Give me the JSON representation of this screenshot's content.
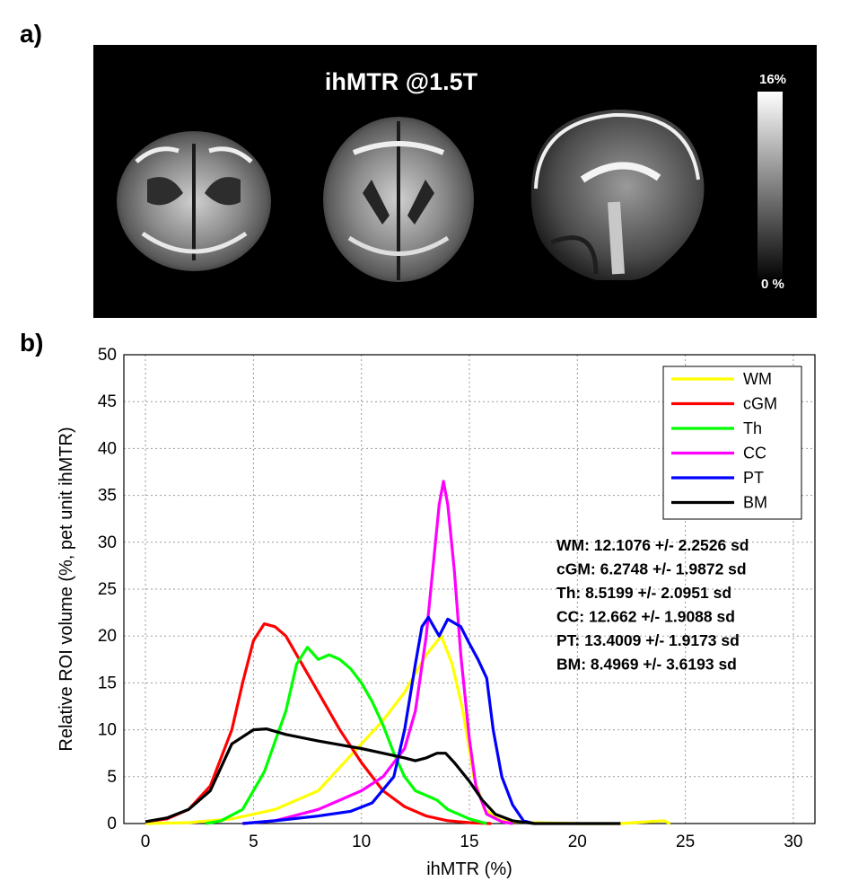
{
  "panel_a_label": "a)",
  "panel_b_label": "b)",
  "mri": {
    "title": "ihMTR @1.5T",
    "colorbar_max": "16%",
    "colorbar_min": "0 %"
  },
  "chart_data": {
    "type": "line",
    "xlabel": "ihMTR (%)",
    "ylabel": "Relative ROI volume (%, pet unit ihMTR)",
    "xlim": [
      -1,
      31
    ],
    "ylim": [
      0,
      50
    ],
    "xticks": [
      0,
      5,
      10,
      15,
      20,
      25,
      30
    ],
    "yticks": [
      0,
      5,
      10,
      15,
      20,
      25,
      30,
      35,
      40,
      45,
      50
    ],
    "grid": true,
    "legend_position": "top-right",
    "series": [
      {
        "name": "WM",
        "color": "#ffff00",
        "points": [
          [
            0,
            0
          ],
          [
            2,
            0.1
          ],
          [
            4,
            0.5
          ],
          [
            6,
            1.5
          ],
          [
            8,
            3.5
          ],
          [
            9,
            6
          ],
          [
            10,
            8.5
          ],
          [
            11,
            11
          ],
          [
            12,
            14
          ],
          [
            13,
            18
          ],
          [
            13.7,
            20
          ],
          [
            14.2,
            17
          ],
          [
            14.7,
            12
          ],
          [
            15.2,
            5
          ],
          [
            15.7,
            1.5
          ],
          [
            16.5,
            0.3
          ],
          [
            18,
            0.1
          ],
          [
            20,
            0
          ],
          [
            22,
            0
          ],
          [
            24,
            0.3
          ],
          [
            24.3,
            0
          ]
        ]
      },
      {
        "name": "cGM",
        "color": "#ff0000",
        "points": [
          [
            0,
            0.2
          ],
          [
            1,
            0.5
          ],
          [
            2,
            1.5
          ],
          [
            3,
            4
          ],
          [
            4,
            10
          ],
          [
            4.5,
            15
          ],
          [
            5,
            19.5
          ],
          [
            5.5,
            21.3
          ],
          [
            6,
            21
          ],
          [
            6.5,
            20
          ],
          [
            7,
            18
          ],
          [
            8,
            14
          ],
          [
            9,
            10
          ],
          [
            10,
            6.5
          ],
          [
            11,
            3.5
          ],
          [
            12,
            1.8
          ],
          [
            13,
            0.8
          ],
          [
            14,
            0.3
          ],
          [
            15,
            0.1
          ],
          [
            16,
            0
          ]
        ]
      },
      {
        "name": "Th",
        "color": "#00ff00",
        "points": [
          [
            2.8,
            0
          ],
          [
            3.5,
            0.3
          ],
          [
            4.5,
            1.5
          ],
          [
            5.5,
            5.5
          ],
          [
            6.5,
            12
          ],
          [
            7,
            17
          ],
          [
            7.5,
            18.8
          ],
          [
            8,
            17.5
          ],
          [
            8.5,
            18
          ],
          [
            9,
            17.5
          ],
          [
            9.5,
            16.5
          ],
          [
            10,
            15
          ],
          [
            10.5,
            13
          ],
          [
            11,
            10.5
          ],
          [
            11.5,
            7.5
          ],
          [
            12,
            5
          ],
          [
            12.5,
            3.5
          ],
          [
            13,
            3
          ],
          [
            13.5,
            2.5
          ],
          [
            14,
            1.5
          ],
          [
            15,
            0.5
          ],
          [
            15.8,
            0
          ]
        ]
      },
      {
        "name": "CC",
        "color": "#ff00ff",
        "points": [
          [
            4.5,
            0
          ],
          [
            6,
            0.3
          ],
          [
            8,
            1.5
          ],
          [
            10,
            3.5
          ],
          [
            11,
            5
          ],
          [
            12,
            8
          ],
          [
            12.5,
            12
          ],
          [
            13,
            20
          ],
          [
            13.3,
            27
          ],
          [
            13.6,
            34
          ],
          [
            13.8,
            36.5
          ],
          [
            14,
            34
          ],
          [
            14.3,
            27
          ],
          [
            14.6,
            18
          ],
          [
            15,
            9
          ],
          [
            15.3,
            4
          ],
          [
            15.8,
            1
          ],
          [
            16.5,
            0.2
          ],
          [
            17,
            0
          ]
        ]
      },
      {
        "name": "PT",
        "color": "#0000ff",
        "points": [
          [
            4.5,
            0
          ],
          [
            6,
            0.3
          ],
          [
            8,
            0.8
          ],
          [
            9.5,
            1.3
          ],
          [
            10.5,
            2.2
          ],
          [
            11.5,
            5
          ],
          [
            12,
            10
          ],
          [
            12.5,
            17
          ],
          [
            12.8,
            21
          ],
          [
            13.1,
            22
          ],
          [
            13.6,
            20
          ],
          [
            14,
            21.8
          ],
          [
            14.6,
            21
          ],
          [
            15,
            19.2
          ],
          [
            15.4,
            17.5
          ],
          [
            15.8,
            15.5
          ],
          [
            16.1,
            10
          ],
          [
            16.5,
            5
          ],
          [
            17,
            2
          ],
          [
            17.5,
            0.3
          ],
          [
            18,
            0
          ]
        ]
      },
      {
        "name": "BM",
        "color": "#000000",
        "points": [
          [
            0,
            0.2
          ],
          [
            1,
            0.6
          ],
          [
            2,
            1.5
          ],
          [
            3,
            3.5
          ],
          [
            3.5,
            6
          ],
          [
            4,
            8.5
          ],
          [
            5,
            10
          ],
          [
            5.6,
            10.1
          ],
          [
            6.5,
            9.5
          ],
          [
            8,
            8.8
          ],
          [
            10,
            8
          ],
          [
            11,
            7.5
          ],
          [
            12,
            7
          ],
          [
            12.5,
            6.7
          ],
          [
            13,
            7
          ],
          [
            13.5,
            7.5
          ],
          [
            13.9,
            7.5
          ],
          [
            14.3,
            6.5
          ],
          [
            15,
            4.5
          ],
          [
            15.6,
            2.5
          ],
          [
            16.2,
            1
          ],
          [
            17,
            0.3
          ],
          [
            18,
            0
          ],
          [
            22,
            0
          ]
        ]
      }
    ],
    "stats": [
      "WM:  12.1076 +/- 2.2526 sd",
      "cGM: 6.2748 +/- 1.9872 sd",
      "Th: 8.5199 +/- 2.0951 sd",
      "CC: 12.662 +/- 1.9088 sd",
      "PT: 13.4009 +/- 1.9173 sd",
      "BM: 8.4969 +/- 3.6193 sd"
    ]
  }
}
